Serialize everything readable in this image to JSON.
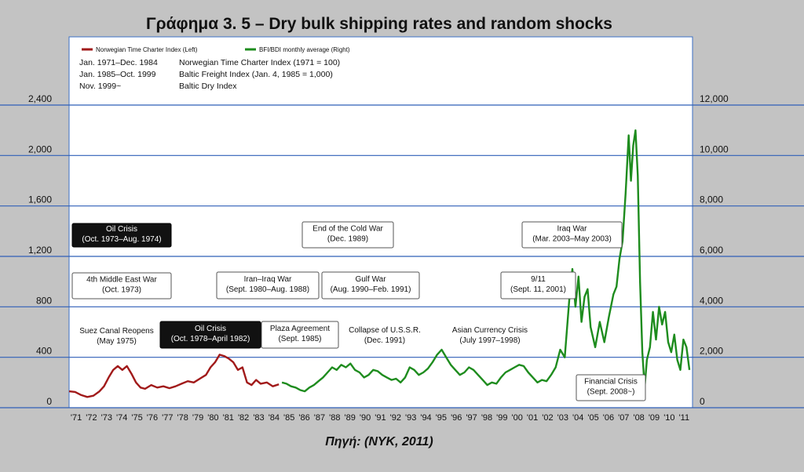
{
  "chart_data": {
    "type": "line",
    "title": "Γράφημα 3. 5 – Dry bulk shipping rates and random shocks",
    "source": "Πηγή: (NYK, 2011)",
    "y_left": {
      "min": 0,
      "max": 2400,
      "ticks": [
        0,
        400,
        800,
        1200,
        1600,
        2000,
        2400
      ],
      "tick_labels": [
        "0",
        "400",
        "800",
        "1,200",
        "1,600",
        "2,000",
        "2,400"
      ]
    },
    "y_right": {
      "min": 0,
      "max": 12000,
      "ticks": [
        0,
        2000,
        4000,
        6000,
        8000,
        10000,
        12000
      ],
      "tick_labels": [
        "0",
        "2,000",
        "4,000",
        "6,000",
        "8,000",
        "10,000",
        "12,000"
      ]
    },
    "x": {
      "min": 1971,
      "max": 2012,
      "tick_labels": [
        "'71",
        "'72",
        "'73",
        "'74",
        "'75",
        "'76",
        "'77",
        "'78",
        "'79",
        "'80",
        "'81",
        "'82",
        "'83",
        "'84",
        "'85",
        "'86",
        "'87",
        "'88",
        "'89",
        "'90",
        "'91",
        "'92",
        "'93",
        "'94",
        "'95",
        "'96",
        "'97",
        "'98",
        "'99",
        "'00",
        "'01",
        "'02",
        "'03",
        "'04",
        "'05",
        "'06",
        "'07",
        "'08",
        "'09",
        "'10",
        "'11"
      ]
    },
    "grid": "horizontal",
    "legend": [
      {
        "label": "Norwegian Time Charter Index (Left)",
        "color": "#a11a1a"
      },
      {
        "label": "BFI/BDI monthly average (Right)",
        "color": "#1e8c1e"
      }
    ],
    "index_notes": [
      {
        "period": "Jan. 1971–Dec. 1984",
        "desc": "Norwegian Time Charter Index (1971 = 100)"
      },
      {
        "period": "Jan. 1985–Oct. 1999",
        "desc": "Baltic Freight Index (Jan. 4, 1985 = 1,000)"
      },
      {
        "period": "Nov. 1999~",
        "desc": "Baltic Dry Index"
      }
    ],
    "series": [
      {
        "name": "Norwegian Time Charter Index (Left)",
        "axis": "left",
        "color": "#a11a1a",
        "points": [
          [
            1971.0,
            130
          ],
          [
            1971.4,
            125
          ],
          [
            1971.8,
            100
          ],
          [
            1972.2,
            85
          ],
          [
            1972.6,
            95
          ],
          [
            1973.0,
            130
          ],
          [
            1973.3,
            170
          ],
          [
            1973.6,
            240
          ],
          [
            1973.9,
            300
          ],
          [
            1974.2,
            330
          ],
          [
            1974.5,
            300
          ],
          [
            1974.8,
            330
          ],
          [
            1975.1,
            270
          ],
          [
            1975.4,
            200
          ],
          [
            1975.7,
            160
          ],
          [
            1976.0,
            150
          ],
          [
            1976.4,
            180
          ],
          [
            1976.8,
            160
          ],
          [
            1977.2,
            170
          ],
          [
            1977.6,
            155
          ],
          [
            1978.0,
            170
          ],
          [
            1978.4,
            190
          ],
          [
            1978.8,
            210
          ],
          [
            1979.2,
            200
          ],
          [
            1979.6,
            230
          ],
          [
            1980.0,
            260
          ],
          [
            1980.3,
            320
          ],
          [
            1980.6,
            360
          ],
          [
            1980.9,
            420
          ],
          [
            1981.2,
            410
          ],
          [
            1981.5,
            390
          ],
          [
            1981.8,
            360
          ],
          [
            1982.1,
            300
          ],
          [
            1982.4,
            320
          ],
          [
            1982.7,
            200
          ],
          [
            1983.0,
            180
          ],
          [
            1983.3,
            220
          ],
          [
            1983.6,
            190
          ],
          [
            1984.0,
            200
          ],
          [
            1984.4,
            170
          ],
          [
            1984.8,
            185
          ]
        ]
      },
      {
        "name": "BFI/BDI monthly average (Right)",
        "axis": "right",
        "color": "#1e8c1e",
        "points": [
          [
            1985.0,
            1000
          ],
          [
            1985.3,
            950
          ],
          [
            1985.6,
            850
          ],
          [
            1985.9,
            800
          ],
          [
            1986.2,
            700
          ],
          [
            1986.5,
            650
          ],
          [
            1986.8,
            800
          ],
          [
            1987.1,
            900
          ],
          [
            1987.4,
            1050
          ],
          [
            1987.7,
            1200
          ],
          [
            1988.0,
            1400
          ],
          [
            1988.3,
            1600
          ],
          [
            1988.6,
            1500
          ],
          [
            1988.9,
            1700
          ],
          [
            1989.2,
            1600
          ],
          [
            1989.5,
            1750
          ],
          [
            1989.8,
            1500
          ],
          [
            1990.1,
            1400
          ],
          [
            1990.4,
            1200
          ],
          [
            1990.7,
            1300
          ],
          [
            1991.0,
            1500
          ],
          [
            1991.3,
            1450
          ],
          [
            1991.6,
            1300
          ],
          [
            1991.9,
            1200
          ],
          [
            1992.2,
            1100
          ],
          [
            1992.5,
            1150
          ],
          [
            1992.8,
            1000
          ],
          [
            1993.1,
            1200
          ],
          [
            1993.4,
            1600
          ],
          [
            1993.7,
            1500
          ],
          [
            1994.0,
            1300
          ],
          [
            1994.3,
            1400
          ],
          [
            1994.6,
            1550
          ],
          [
            1994.9,
            1800
          ],
          [
            1995.2,
            2100
          ],
          [
            1995.5,
            2300
          ],
          [
            1995.8,
            2000
          ],
          [
            1996.1,
            1700
          ],
          [
            1996.4,
            1500
          ],
          [
            1996.7,
            1300
          ],
          [
            1997.0,
            1400
          ],
          [
            1997.3,
            1600
          ],
          [
            1997.6,
            1500
          ],
          [
            1997.9,
            1300
          ],
          [
            1998.2,
            1100
          ],
          [
            1998.5,
            900
          ],
          [
            1998.8,
            1000
          ],
          [
            1999.1,
            950
          ],
          [
            1999.4,
            1200
          ],
          [
            1999.7,
            1400
          ],
          [
            2000.0,
            1500
          ],
          [
            2000.3,
            1600
          ],
          [
            2000.6,
            1700
          ],
          [
            2000.9,
            1650
          ],
          [
            2001.2,
            1400
          ],
          [
            2001.5,
            1200
          ],
          [
            2001.8,
            1000
          ],
          [
            2002.1,
            1100
          ],
          [
            2002.4,
            1050
          ],
          [
            2002.7,
            1300
          ],
          [
            2003.0,
            1600
          ],
          [
            2003.3,
            2300
          ],
          [
            2003.6,
            2000
          ],
          [
            2003.9,
            4300
          ],
          [
            2004.1,
            5500
          ],
          [
            2004.3,
            4000
          ],
          [
            2004.5,
            5200
          ],
          [
            2004.7,
            3400
          ],
          [
            2004.9,
            4400
          ],
          [
            2005.1,
            4700
          ],
          [
            2005.3,
            3200
          ],
          [
            2005.6,
            2400
          ],
          [
            2005.9,
            3400
          ],
          [
            2006.2,
            2600
          ],
          [
            2006.5,
            3600
          ],
          [
            2006.8,
            4500
          ],
          [
            2007.0,
            4800
          ],
          [
            2007.2,
            5900
          ],
          [
            2007.4,
            6600
          ],
          [
            2007.6,
            8500
          ],
          [
            2007.8,
            10800
          ],
          [
            2007.95,
            9000
          ],
          [
            2008.1,
            10400
          ],
          [
            2008.25,
            11000
          ],
          [
            2008.4,
            9200
          ],
          [
            2008.55,
            5000
          ],
          [
            2008.7,
            2200
          ],
          [
            2008.85,
            800
          ],
          [
            2009.0,
            1900
          ],
          [
            2009.2,
            2400
          ],
          [
            2009.4,
            3800
          ],
          [
            2009.6,
            2700
          ],
          [
            2009.8,
            4000
          ],
          [
            2010.0,
            3300
          ],
          [
            2010.2,
            3800
          ],
          [
            2010.4,
            2600
          ],
          [
            2010.6,
            2200
          ],
          [
            2010.8,
            2900
          ],
          [
            2011.0,
            1900
          ],
          [
            2011.2,
            1500
          ],
          [
            2011.4,
            2700
          ],
          [
            2011.6,
            2400
          ],
          [
            2011.8,
            1500
          ]
        ]
      }
    ],
    "annotations": [
      {
        "text": [
          "Oil Crisis",
          "(Oct. 1973–Aug. 1974)"
        ],
        "dark": true,
        "boxed": true
      },
      {
        "text": [
          "4th Middle East War",
          "(Oct. 1973)"
        ],
        "dark": false,
        "boxed": true
      },
      {
        "text": [
          "Suez Canal Reopens",
          "(May 1975)"
        ],
        "dark": false,
        "boxed": false
      },
      {
        "text": [
          "Oil Crisis",
          "(Oct. 1978–April 1982)"
        ],
        "dark": true,
        "boxed": true
      },
      {
        "text": [
          "Iran–Iraq War",
          "(Sept. 1980–Aug. 1988)"
        ],
        "dark": false,
        "boxed": true
      },
      {
        "text": [
          "Plaza Agreement",
          "(Sept. 1985)"
        ],
        "dark": false,
        "boxed": true
      },
      {
        "text": [
          "End of the Cold War",
          "(Dec. 1989)"
        ],
        "dark": false,
        "boxed": true
      },
      {
        "text": [
          "Gulf War",
          "(Aug. 1990–Feb. 1991)"
        ],
        "dark": false,
        "boxed": true
      },
      {
        "text": [
          "Collapse of U.S.S.R.",
          "(Dec. 1991)"
        ],
        "dark": false,
        "boxed": false
      },
      {
        "text": [
          "Asian Currency Crisis",
          "(July 1997–1998)"
        ],
        "dark": false,
        "boxed": false
      },
      {
        "text": [
          "9/11",
          "(Sept. 11, 2001)"
        ],
        "dark": false,
        "boxed": true
      },
      {
        "text": [
          "Iraq War",
          "(Mar. 2003–May 2003)"
        ],
        "dark": false,
        "boxed": true
      },
      {
        "text": [
          "Financial Crisis",
          "(Sept. 2008~)"
        ],
        "dark": false,
        "boxed": true
      }
    ]
  }
}
